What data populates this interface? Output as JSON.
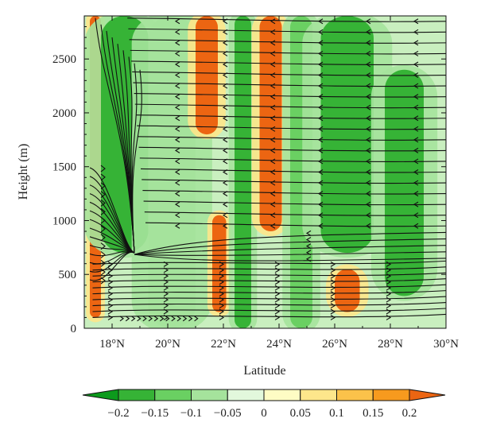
{
  "chart_data": {
    "type": "heatmap",
    "subtype": "filled-contour with streamlines (latitude–height cross-section)",
    "title": "",
    "xlabel": "Latitude",
    "ylabel": "Height (m)",
    "xlim": [
      17,
      30
    ],
    "ylim": [
      0,
      2900
    ],
    "x_ticks": [
      18,
      20,
      22,
      24,
      26,
      28,
      30
    ],
    "x_tick_labels": [
      "18°N",
      "20°N",
      "22°N",
      "24°N",
      "26°N",
      "28°N",
      "30°N"
    ],
    "y_ticks": [
      0,
      500,
      1000,
      1500,
      2000,
      2500
    ],
    "y_tick_labels": [
      "0",
      "500",
      "1000",
      "1500",
      "2000",
      "2500"
    ],
    "grid": false,
    "colorbar": {
      "placement": "bottom",
      "levels": [
        -0.2,
        -0.15,
        -0.1,
        -0.05,
        0,
        0.05,
        0.1,
        0.15,
        0.2
      ],
      "tick_labels": [
        "−0.2",
        "−0.15",
        "−0.1",
        "−0.05",
        "0",
        "0.05",
        "0.1",
        "0.15",
        "0.2"
      ],
      "colors": [
        "#0c9a1c",
        "#36b336",
        "#6ad062",
        "#a5e39c",
        "#e2f8dc",
        "#fefcc4",
        "#fde68b",
        "#fbc24a",
        "#f79a1e",
        "#ec6512"
      ]
    },
    "vertical_bands": [
      {
        "lat_from": 17.2,
        "lat_to": 17.6,
        "h_from": 100,
        "h_to": 2900,
        "value": 0.2
      },
      {
        "lat_from": 17.6,
        "lat_to": 19.3,
        "h_from": 700,
        "h_to": 2900,
        "value": -0.2
      },
      {
        "lat_from": 19.3,
        "lat_to": 21.0,
        "h_from": 0,
        "h_to": 2900,
        "value": -0.08
      },
      {
        "lat_from": 21.0,
        "lat_to": 21.8,
        "h_from": 1800,
        "h_to": 2900,
        "value": 0.2
      },
      {
        "lat_from": 21.6,
        "lat_to": 22.1,
        "h_from": 150,
        "h_to": 1050,
        "value": 0.2
      },
      {
        "lat_from": 22.4,
        "lat_to": 23.0,
        "h_from": 0,
        "h_to": 2900,
        "value": -0.2
      },
      {
        "lat_from": 23.3,
        "lat_to": 24.1,
        "h_from": 900,
        "h_to": 2900,
        "value": 0.2
      },
      {
        "lat_from": 24.4,
        "lat_to": 25.2,
        "h_from": 0,
        "h_to": 2900,
        "value": -0.15
      },
      {
        "lat_from": 25.5,
        "lat_to": 27.4,
        "h_from": 700,
        "h_to": 2900,
        "value": -0.2
      },
      {
        "lat_from": 26.0,
        "lat_to": 26.9,
        "h_from": 150,
        "h_to": 550,
        "value": 0.2
      },
      {
        "lat_from": 27.8,
        "lat_to": 29.2,
        "h_from": 300,
        "h_to": 2400,
        "value": -0.2
      }
    ],
    "streamlines": {
      "dominant_direction": "westward (toward lower latitude) above 900 m; eastward near surface",
      "convergence_point": {
        "lat": 18.8,
        "height": 700
      }
    }
  }
}
